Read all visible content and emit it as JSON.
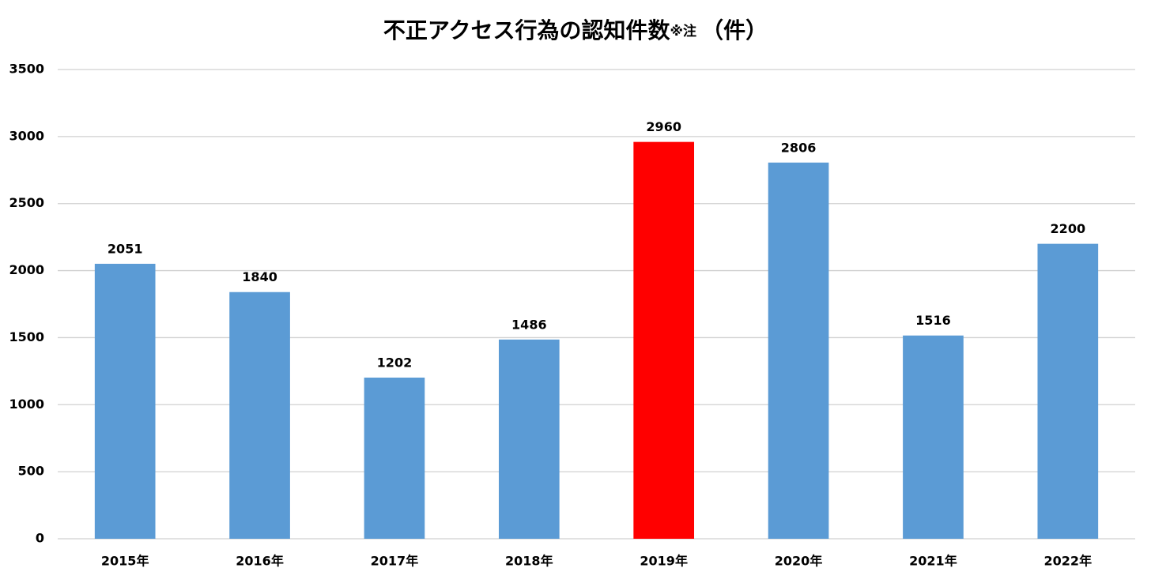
{
  "chart_data": {
    "type": "bar",
    "title": "不正アクセス行為の認知件数",
    "title_note": "※注",
    "title_unit": "（件）",
    "categories": [
      "2015年",
      "2016年",
      "2017年",
      "2018年",
      "2019年",
      "2020年",
      "2021年",
      "2022年"
    ],
    "values": [
      2051,
      1840,
      1202,
      1486,
      2960,
      2806,
      1516,
      2200
    ],
    "colors": [
      "#5b9bd5",
      "#5b9bd5",
      "#5b9bd5",
      "#5b9bd5",
      "#ff0000",
      "#5b9bd5",
      "#5b9bd5",
      "#5b9bd5"
    ],
    "ylim": [
      0,
      3500
    ],
    "yticks": [
      0,
      500,
      1000,
      1500,
      2000,
      2500,
      3000,
      3500
    ],
    "grid": true
  }
}
